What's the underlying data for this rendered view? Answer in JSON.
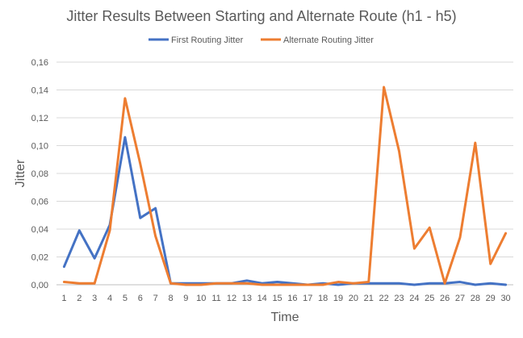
{
  "chart_data": {
    "type": "line",
    "title": "Jitter Results Between Starting and Alternate Route (h1 - h5)",
    "xlabel": "Time",
    "ylabel": "Jitter",
    "x": [
      1,
      2,
      3,
      4,
      5,
      6,
      7,
      8,
      9,
      10,
      11,
      12,
      13,
      14,
      15,
      16,
      17,
      18,
      19,
      20,
      21,
      22,
      23,
      24,
      25,
      26,
      27,
      28,
      29,
      30
    ],
    "ylim": [
      0,
      0.16
    ],
    "yticks": [
      "0,00",
      "0,02",
      "0,04",
      "0,06",
      "0,08",
      "0,10",
      "0,12",
      "0,14",
      "0,16"
    ],
    "grid": true,
    "legend_position": "top",
    "series": [
      {
        "name": "First Routing Jitter",
        "color": "#4472C4",
        "values": [
          0.013,
          0.039,
          0.019,
          0.043,
          0.106,
          0.048,
          0.055,
          0.001,
          0.001,
          0.001,
          0.001,
          0.001,
          0.003,
          0.001,
          0.002,
          0.001,
          0.0,
          0.001,
          0.0,
          0.001,
          0.001,
          0.001,
          0.001,
          0.0,
          0.001,
          0.001,
          0.002,
          0.0,
          0.001,
          0.0
        ]
      },
      {
        "name": "Alternate Routing Jitter",
        "color": "#ED7D31",
        "values": [
          0.002,
          0.001,
          0.001,
          0.039,
          0.134,
          0.087,
          0.035,
          0.001,
          0.0,
          0.0,
          0.001,
          0.001,
          0.001,
          0.0,
          0.0,
          0.0,
          0.0,
          0.0,
          0.002,
          0.001,
          0.002,
          0.142,
          0.096,
          0.026,
          0.041,
          0.001,
          0.034,
          0.102,
          0.015,
          0.037
        ]
      }
    ]
  }
}
